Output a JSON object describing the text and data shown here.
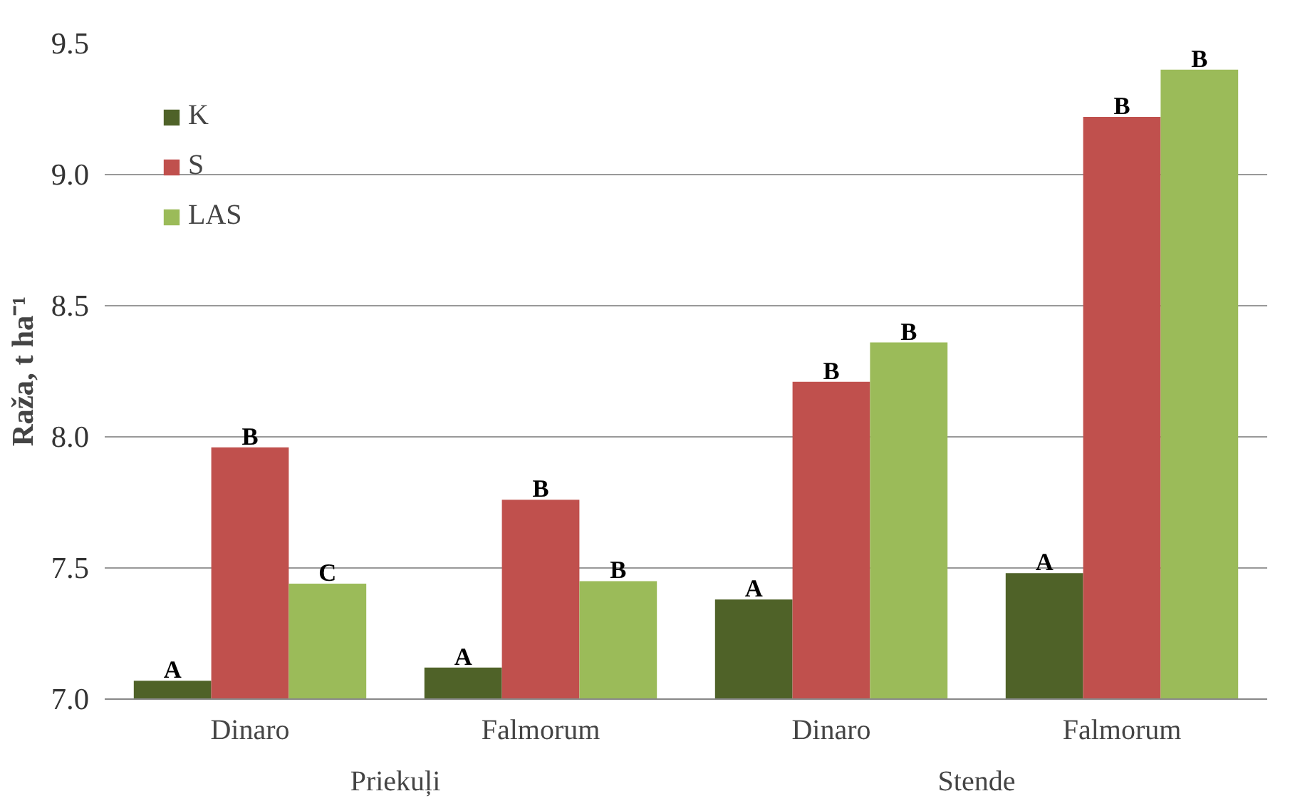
{
  "chart_data": {
    "type": "bar",
    "ylabel": "Raža, t ha⁻¹",
    "categories": [
      "Dinaro",
      "Falmorum",
      "Dinaro",
      "Falmorum"
    ],
    "series": [
      {
        "name": "K",
        "color": "#4f6228",
        "values": [
          7.07,
          7.12,
          7.38,
          7.48
        ],
        "value_labels": [
          "A",
          "A",
          "A",
          "A"
        ]
      },
      {
        "name": "S",
        "color": "#c0504d",
        "values": [
          7.96,
          7.76,
          8.21,
          9.22
        ],
        "value_labels": [
          "B",
          "B",
          "B",
          "B"
        ]
      },
      {
        "name": "LAS",
        "color": "#9bbb59",
        "values": [
          7.44,
          7.45,
          8.36,
          9.4
        ],
        "value_labels": [
          "C",
          "B",
          "B",
          "B"
        ]
      }
    ],
    "annotations": [
      "Priekuļi",
      "Stende"
    ],
    "ylim": [
      7.0,
      9.5
    ],
    "yticks": [
      {
        "value": 7.0,
        "label": "7.0"
      },
      {
        "value": 7.5,
        "label": "7.5"
      },
      {
        "value": 8.0,
        "label": "8.0"
      },
      {
        "value": 8.5,
        "label": "8.5"
      },
      {
        "value": 9.0,
        "label": "9.0"
      },
      {
        "value": 9.5,
        "label": "9.5"
      }
    ],
    "grid": "y",
    "legend": "top left"
  }
}
